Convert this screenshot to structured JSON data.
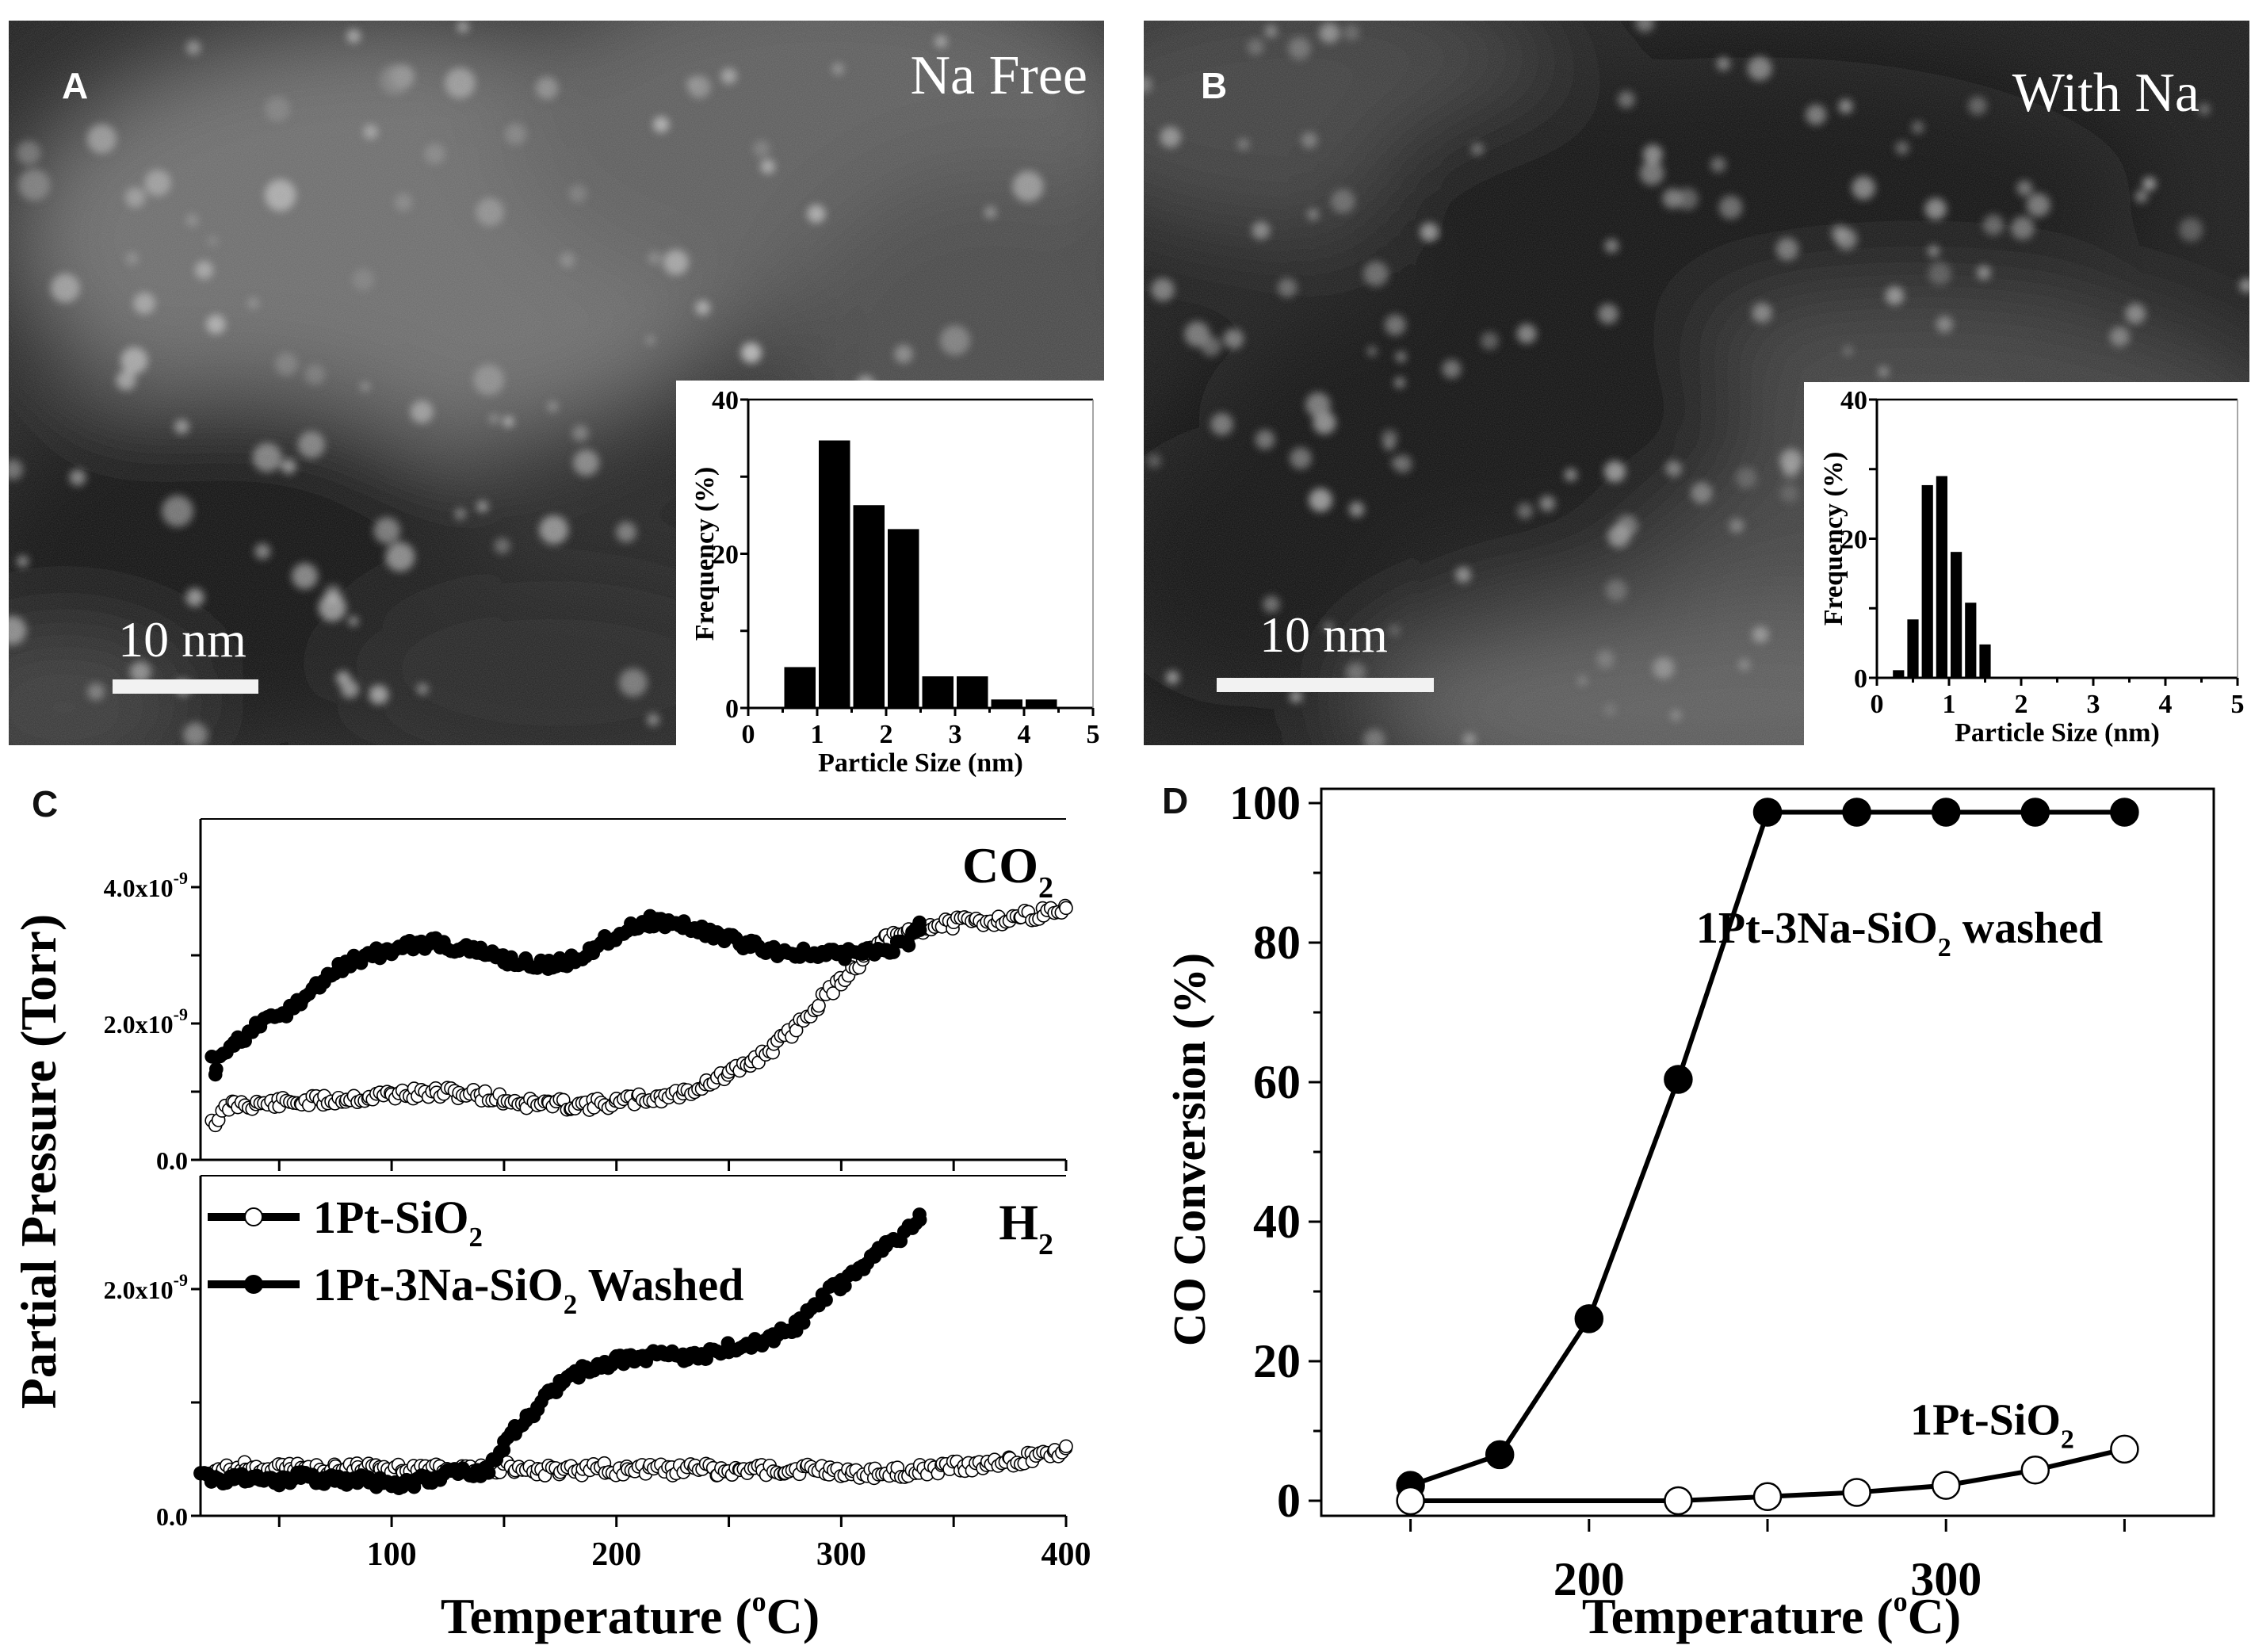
{
  "figure": {
    "panels": {
      "A": {
        "letter": "A",
        "condition_label": "Na Free",
        "scale_bar_label": "10 nm"
      },
      "B": {
        "letter": "B",
        "condition_label": "With Na",
        "scale_bar_label": "10 nm"
      },
      "C": {
        "letter": "C"
      },
      "D": {
        "letter": "D"
      }
    }
  },
  "chart_data": [
    {
      "id": "A-inset",
      "type": "bar",
      "title": "",
      "xlabel": "Particle Size (nm)",
      "ylabel": "Frequency (%)",
      "xlim": [
        0,
        5
      ],
      "ylim": [
        0,
        40
      ],
      "xticks": [
        0,
        1,
        2,
        3,
        4,
        5
      ],
      "yticks": [
        0,
        20,
        40
      ],
      "bin_width": 0.5,
      "bin_starts": [
        0.5,
        1.0,
        1.5,
        2.0,
        2.5,
        3.0,
        3.5,
        4.0
      ],
      "values": [
        5.3,
        34.7,
        26.3,
        23.2,
        4.1,
        4.1,
        1.1,
        1.1
      ]
    },
    {
      "id": "B-inset",
      "type": "bar",
      "title": "",
      "xlabel": "Particle Size (nm)",
      "ylabel": "Frequency (%)",
      "xlim": [
        0,
        5
      ],
      "ylim": [
        0,
        40
      ],
      "xticks": [
        0,
        1,
        2,
        3,
        4,
        5
      ],
      "yticks": [
        0,
        20,
        40
      ],
      "bin_width": 0.2,
      "bin_starts": [
        0.2,
        0.4,
        0.6,
        0.8,
        1.0,
        1.2,
        1.4
      ],
      "values": [
        1.1,
        8.4,
        27.7,
        29.0,
        18.1,
        10.8,
        4.8
      ]
    },
    {
      "id": "C-CO2",
      "type": "scatter",
      "title": "CO2",
      "title_main": "CO",
      "title_sub": "2",
      "xlabel": "Temperature (°C)",
      "xlabel_parts": [
        "Temperature (",
        "o",
        "C)"
      ],
      "ylabel": "Partial Pressure (Torr)",
      "xlim": [
        15,
        400
      ],
      "ylim": [
        0,
        5e-09
      ],
      "xticks": [
        50,
        100,
        150,
        200,
        250,
        300,
        350,
        400
      ],
      "yticks": [
        0,
        1e-09,
        2e-09,
        3e-09,
        4e-09
      ],
      "ytick_labels": [
        {
          "v": 0,
          "mant": "0.0",
          "exp": ""
        },
        {
          "v": 2e-09,
          "mant": "2.0x10",
          "exp": "-9"
        },
        {
          "v": 4e-09,
          "mant": "4.0x10",
          "exp": "-9"
        }
      ],
      "series": [
        {
          "name": "1Pt-SiO2",
          "marker": "open-circle",
          "x": [
            20,
            23,
            26,
            30,
            40,
            50,
            60,
            70,
            80,
            90,
            100,
            110,
            120,
            130,
            140,
            150,
            160,
            170,
            180,
            190,
            200,
            210,
            220,
            230,
            240,
            250,
            260,
            270,
            280,
            290,
            300,
            310,
            320,
            330,
            340,
            350,
            360,
            370,
            380,
            390,
            400
          ],
          "y": [
            6e-10,
            5.5e-10,
            7.5e-10,
            8.2e-10,
            8.2e-10,
            8.3e-10,
            8.5e-10,
            8.7e-10,
            9e-10,
            9.2e-10,
            9.6e-10,
            9.7e-10,
            9.8e-10,
            9.8e-10,
            9.5e-10,
            8.8e-10,
            8.3e-10,
            8.2e-10,
            8.1e-10,
            8.1e-10,
            8.4e-10,
            8.9e-10,
            9.2e-10,
            9.8e-10,
            1.12e-09,
            1.25e-09,
            1.43e-09,
            1.65e-09,
            1.94e-09,
            2.3e-09,
            2.64e-09,
            2.96e-09,
            3.23e-09,
            3.35e-09,
            3.43e-09,
            3.47e-09,
            3.5e-09,
            3.52e-09,
            3.57e-09,
            3.62e-09,
            3.68e-09
          ]
        },
        {
          "name": "1Pt-3Na-SiO2 Washed",
          "marker": "filled-circle",
          "x": [
            20,
            22,
            25,
            30,
            40,
            50,
            60,
            70,
            80,
            90,
            100,
            110,
            120,
            130,
            140,
            150,
            160,
            170,
            180,
            190,
            200,
            210,
            215,
            220,
            230,
            240,
            250,
            260,
            270,
            280,
            290,
            300,
            310,
            320,
            330,
            335
          ],
          "y": [
            1.47e-09,
            1.25e-09,
            1.6e-09,
            1.7e-09,
            1.94e-09,
            2.1e-09,
            2.33e-09,
            2.64e-09,
            2.88e-09,
            3e-09,
            3.07e-09,
            3.15e-09,
            3.19e-09,
            3.1e-09,
            3.04e-09,
            2.95e-09,
            2.88e-09,
            2.85e-09,
            2.92e-09,
            3.11e-09,
            3.31e-09,
            3.45e-09,
            3.5e-09,
            3.48e-09,
            3.43e-09,
            3.35e-09,
            3.23e-09,
            3.15e-09,
            3.07e-09,
            3.03e-09,
            3e-09,
            3.02e-09,
            3.04e-09,
            3.08e-09,
            3.19e-09,
            3.43e-09
          ]
        }
      ]
    },
    {
      "id": "C-H2",
      "type": "scatter",
      "title": "H2",
      "title_main": "H",
      "title_sub": "2",
      "xlabel": "Temperature (°C)",
      "ylabel": "Partial Pressure (Torr)",
      "xlim": [
        15,
        400
      ],
      "ylim": [
        0,
        3e-09
      ],
      "xticks": [
        50,
        100,
        150,
        200,
        250,
        300,
        350,
        400
      ],
      "xtick_labels": [
        100,
        200,
        300,
        400
      ],
      "yticks": [
        0,
        1e-09,
        2e-09
      ],
      "ytick_labels": [
        {
          "v": 0,
          "mant": "0.0",
          "exp": ""
        },
        {
          "v": 2e-09,
          "mant": "2.0x10",
          "exp": "-9"
        }
      ],
      "legend": {
        "position": "top-left",
        "entries": [
          {
            "main": "1Pt-SiO",
            "sub": "2",
            "tail": "",
            "marker": "open-circle"
          },
          {
            "main": "1Pt-3Na-SiO",
            "sub": "2",
            "tail": " Washed",
            "marker": "filled-circle"
          }
        ]
      },
      "series": [
        {
          "name": "1Pt-SiO2",
          "marker": "open-circle",
          "x": [
            15,
            25,
            35,
            45,
            55,
            65,
            75,
            85,
            95,
            105,
            115,
            125,
            135,
            145,
            155,
            165,
            175,
            185,
            195,
            205,
            215,
            225,
            235,
            245,
            255,
            265,
            275,
            285,
            295,
            305,
            315,
            325,
            335,
            345,
            355,
            365,
            375,
            385,
            395,
            400
          ],
          "y": [
            3.8e-10,
            4.2e-10,
            4.4e-10,
            4.1e-10,
            4.3e-10,
            4e-10,
            4.2e-10,
            4.4e-10,
            4.1e-10,
            4.3e-10,
            4.2e-10,
            4e-10,
            4.2e-10,
            4.1e-10,
            4.3e-10,
            4e-10,
            4.1e-10,
            4e-10,
            4.2e-10,
            3.9e-10,
            4.1e-10,
            4e-10,
            4.2e-10,
            4e-10,
            3.9e-10,
            4.1e-10,
            4e-10,
            4.1e-10,
            4e-10,
            3.9e-10,
            3.7e-10,
            3.8e-10,
            4e-10,
            4.2e-10,
            4.4e-10,
            4.6e-10,
            4.8e-10,
            5.2e-10,
            5.6e-10,
            6e-10
          ]
        },
        {
          "name": "1Pt-3Na-SiO2 Washed",
          "marker": "filled-circle",
          "x": [
            15,
            20,
            25,
            30,
            40,
            50,
            60,
            70,
            80,
            90,
            100,
            105,
            110,
            120,
            130,
            140,
            145,
            150,
            155,
            160,
            165,
            170,
            175,
            180,
            190,
            200,
            210,
            220,
            230,
            240,
            250,
            260,
            270,
            280,
            285,
            290,
            300,
            310,
            315,
            320,
            330,
            335
          ],
          "y": [
            4e-10,
            3.3e-10,
            3e-10,
            3.6e-10,
            3.3e-10,
            3.1e-10,
            3.4e-10,
            3.2e-10,
            3e-10,
            3.2e-10,
            2.5e-10,
            3e-10,
            3e-10,
            3.5e-10,
            3.8e-10,
            3.8e-10,
            4.5e-10,
            6.2e-10,
            7.5e-10,
            8.5e-10,
            9.7e-10,
            1.08e-09,
            1.17e-09,
            1.24e-09,
            1.31e-09,
            1.37e-09,
            1.4e-09,
            1.41e-09,
            1.41e-09,
            1.43e-09,
            1.48e-09,
            1.52e-09,
            1.57e-09,
            1.68e-09,
            1.78e-09,
            1.9e-09,
            2.05e-09,
            2.2e-09,
            2.3e-09,
            2.38e-09,
            2.52e-09,
            2.62e-09
          ]
        }
      ]
    },
    {
      "id": "D",
      "type": "line",
      "title": "",
      "xlabel": "Temperature (°C)",
      "xlabel_parts": [
        "Temperature (",
        "o",
        "C)"
      ],
      "ylabel": "CO Conversion (%)",
      "xlim": [
        125,
        375
      ],
      "ylim": [
        -2,
        102
      ],
      "xticks": [
        150,
        200,
        250,
        300,
        350
      ],
      "xtick_labels": [
        200,
        300
      ],
      "yticks": [
        0,
        10,
        20,
        30,
        40,
        50,
        60,
        70,
        80,
        90,
        100
      ],
      "ytick_labels": [
        0,
        20,
        40,
        60,
        80,
        100
      ],
      "annotations": [
        {
          "main": "1Pt-3Na-SiO",
          "sub": "2",
          "tail": " washed",
          "x": 230,
          "y": 80
        },
        {
          "main": "1Pt-SiO",
          "sub": "2",
          "tail": "",
          "x": 290,
          "y": 9.5
        }
      ],
      "series": [
        {
          "name": "1Pt-3Na-SiO2 washed",
          "marker": "filled-circle",
          "x": [
            150,
            175,
            200,
            225,
            250,
            275,
            300,
            325,
            350
          ],
          "y": [
            2.2,
            6.6,
            26.1,
            60.4,
            98.7,
            98.7,
            98.7,
            98.7,
            98.7
          ]
        },
        {
          "name": "1Pt-SiO2",
          "marker": "open-circle",
          "x": [
            150,
            225,
            250,
            275,
            300,
            325,
            350
          ],
          "y": [
            0,
            0,
            0.6,
            1.2,
            2.2,
            4.4,
            7.4
          ]
        }
      ]
    }
  ]
}
